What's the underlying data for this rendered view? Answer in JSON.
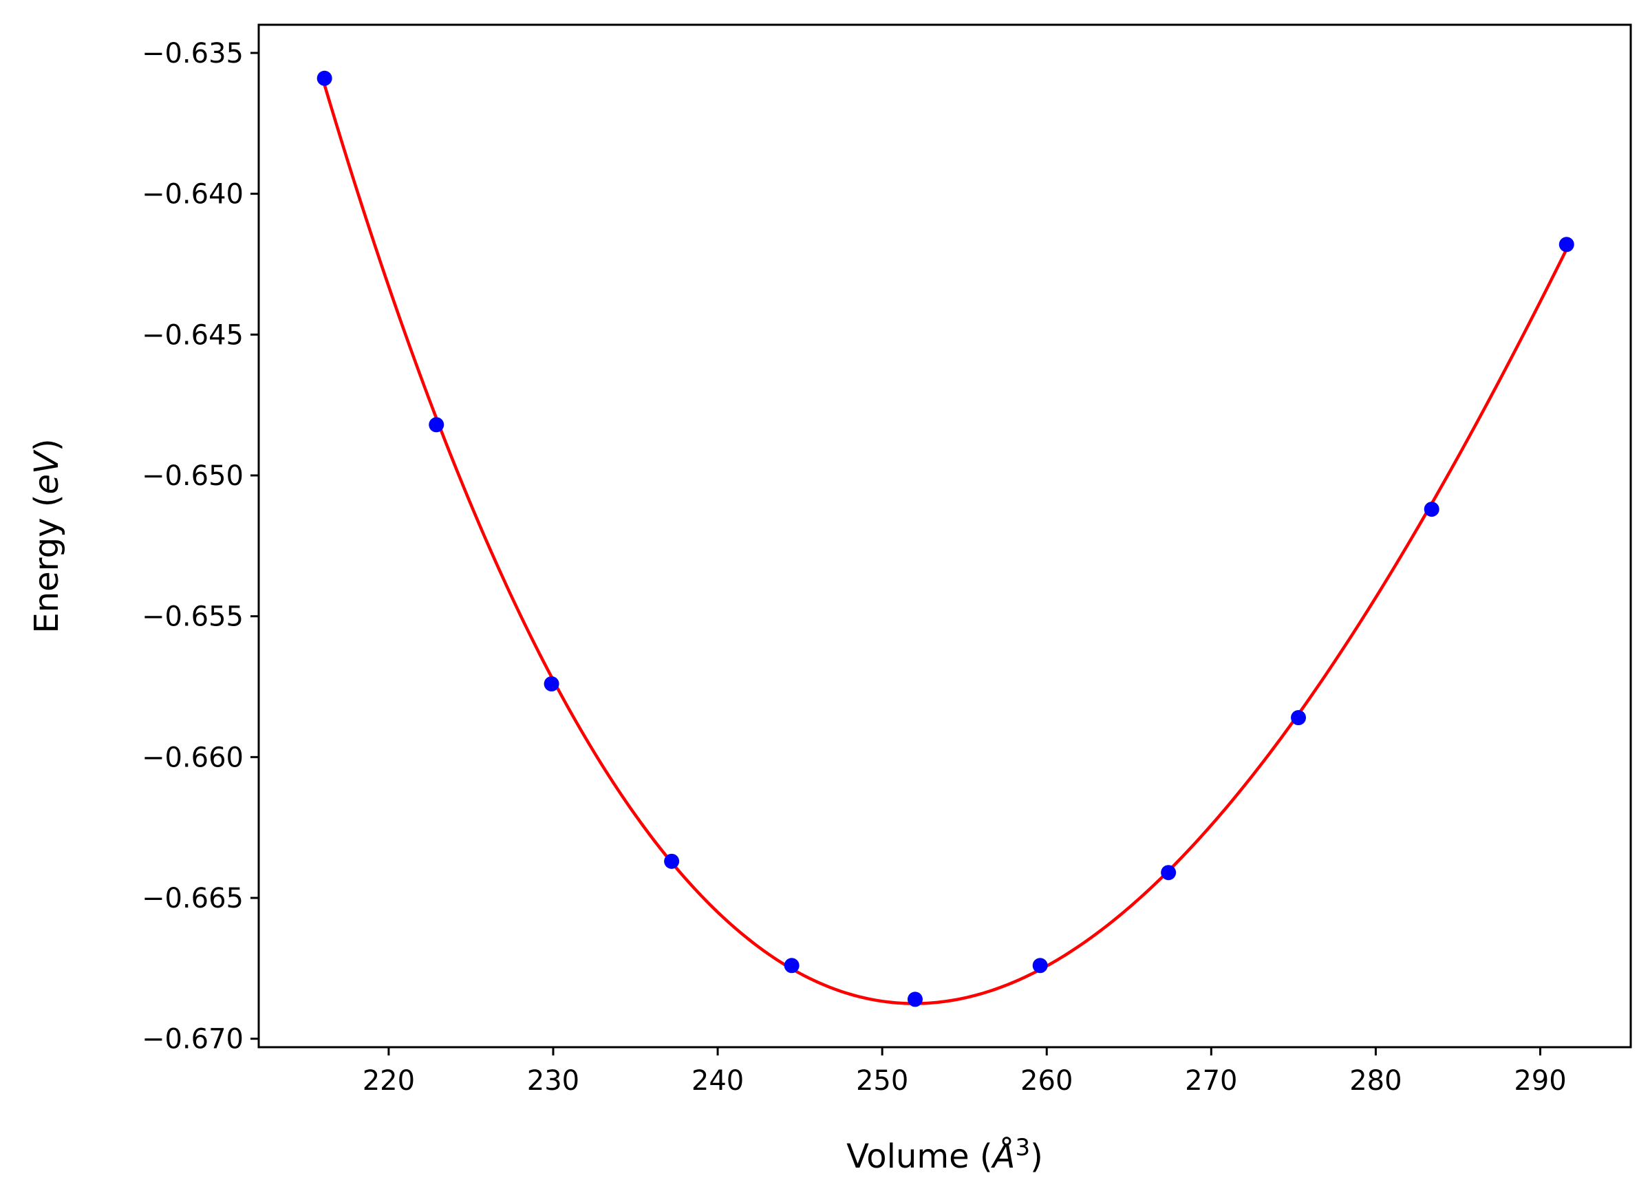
{
  "chart_data": {
    "type": "line",
    "xlabel_prefix": "Volume (",
    "xlabel_symbol": "Å",
    "xlabel_sup": "3",
    "xlabel_suffix": ")",
    "ylabel_prefix": "Energy (",
    "ylabel_italic": "eV",
    "ylabel_suffix": ")",
    "xlim": [
      212.1,
      295.5
    ],
    "ylim": [
      -0.6703,
      -0.634
    ],
    "xticks": [
      220,
      230,
      240,
      250,
      260,
      270,
      280,
      290
    ],
    "xtick_labels": [
      "220",
      "230",
      "240",
      "250",
      "260",
      "270",
      "280",
      "290"
    ],
    "yticks": [
      -0.635,
      -0.64,
      -0.645,
      -0.65,
      -0.655,
      -0.66,
      -0.665,
      -0.67
    ],
    "ytick_labels": [
      "−0.635",
      "−0.640",
      "−0.645",
      "−0.650",
      "−0.655",
      "−0.660",
      "−0.665",
      "−0.670"
    ],
    "grid": false,
    "series": [
      {
        "style": "markers",
        "color": "#0000ff",
        "x": [
          216.1,
          222.9,
          229.9,
          237.2,
          244.5,
          252.0,
          259.6,
          267.4,
          275.3,
          283.4,
          291.6
        ],
        "y": [
          -0.6359,
          -0.6482,
          -0.6574,
          -0.6637,
          -0.6674,
          -0.6686,
          -0.6674,
          -0.6641,
          -0.6586,
          -0.6512,
          -0.6418
        ]
      },
      {
        "style": "line",
        "color": "#ff0000",
        "fit": "cubic-polynomial-through-points"
      }
    ]
  }
}
